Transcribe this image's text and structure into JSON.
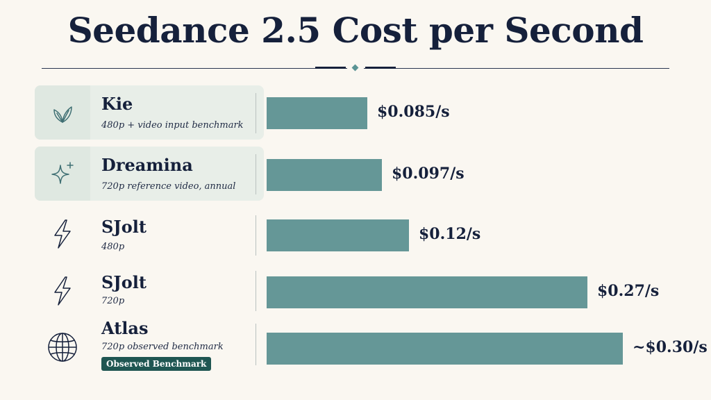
{
  "title": "Seedance 2.5 Cost per Second",
  "colors": {
    "bar": "#659797",
    "text": "#15203b",
    "badge": "#1f5652",
    "highlight": "#e8eee8"
  },
  "chart_data": {
    "type": "bar",
    "orientation": "horizontal",
    "title": "Seedance 2.5 Cost per Second",
    "xlabel": "",
    "ylabel": "",
    "grid": false,
    "categories": [
      "Kie",
      "Dreamina",
      "SJolt",
      "SJolt",
      "Atlas"
    ],
    "values": [
      0.085,
      0.097,
      0.12,
      0.27,
      0.3
    ],
    "value_labels": [
      "$0.085/s",
      "$0.097/s",
      "$0.12/s",
      "$0.27/s",
      "~$0.30/s"
    ],
    "xlim": [
      0,
      0.31
    ]
  },
  "rows": [
    {
      "name": "Kie",
      "sub": "480p + video input benchmark",
      "icon": "leaf-icon",
      "highlight": true
    },
    {
      "name": "Dreamina",
      "sub": "720p reference video, annual",
      "icon": "sparkle-icon",
      "highlight": true
    },
    {
      "name": "SJolt",
      "sub": "480p",
      "icon": "lightning-icon",
      "highlight": false
    },
    {
      "name": "SJolt",
      "sub": "720p",
      "icon": "lightning-icon",
      "highlight": false
    },
    {
      "name": "Atlas",
      "sub": "720p observed benchmark",
      "icon": "globe-icon",
      "highlight": false,
      "badge": "Observed Benchmark"
    }
  ]
}
